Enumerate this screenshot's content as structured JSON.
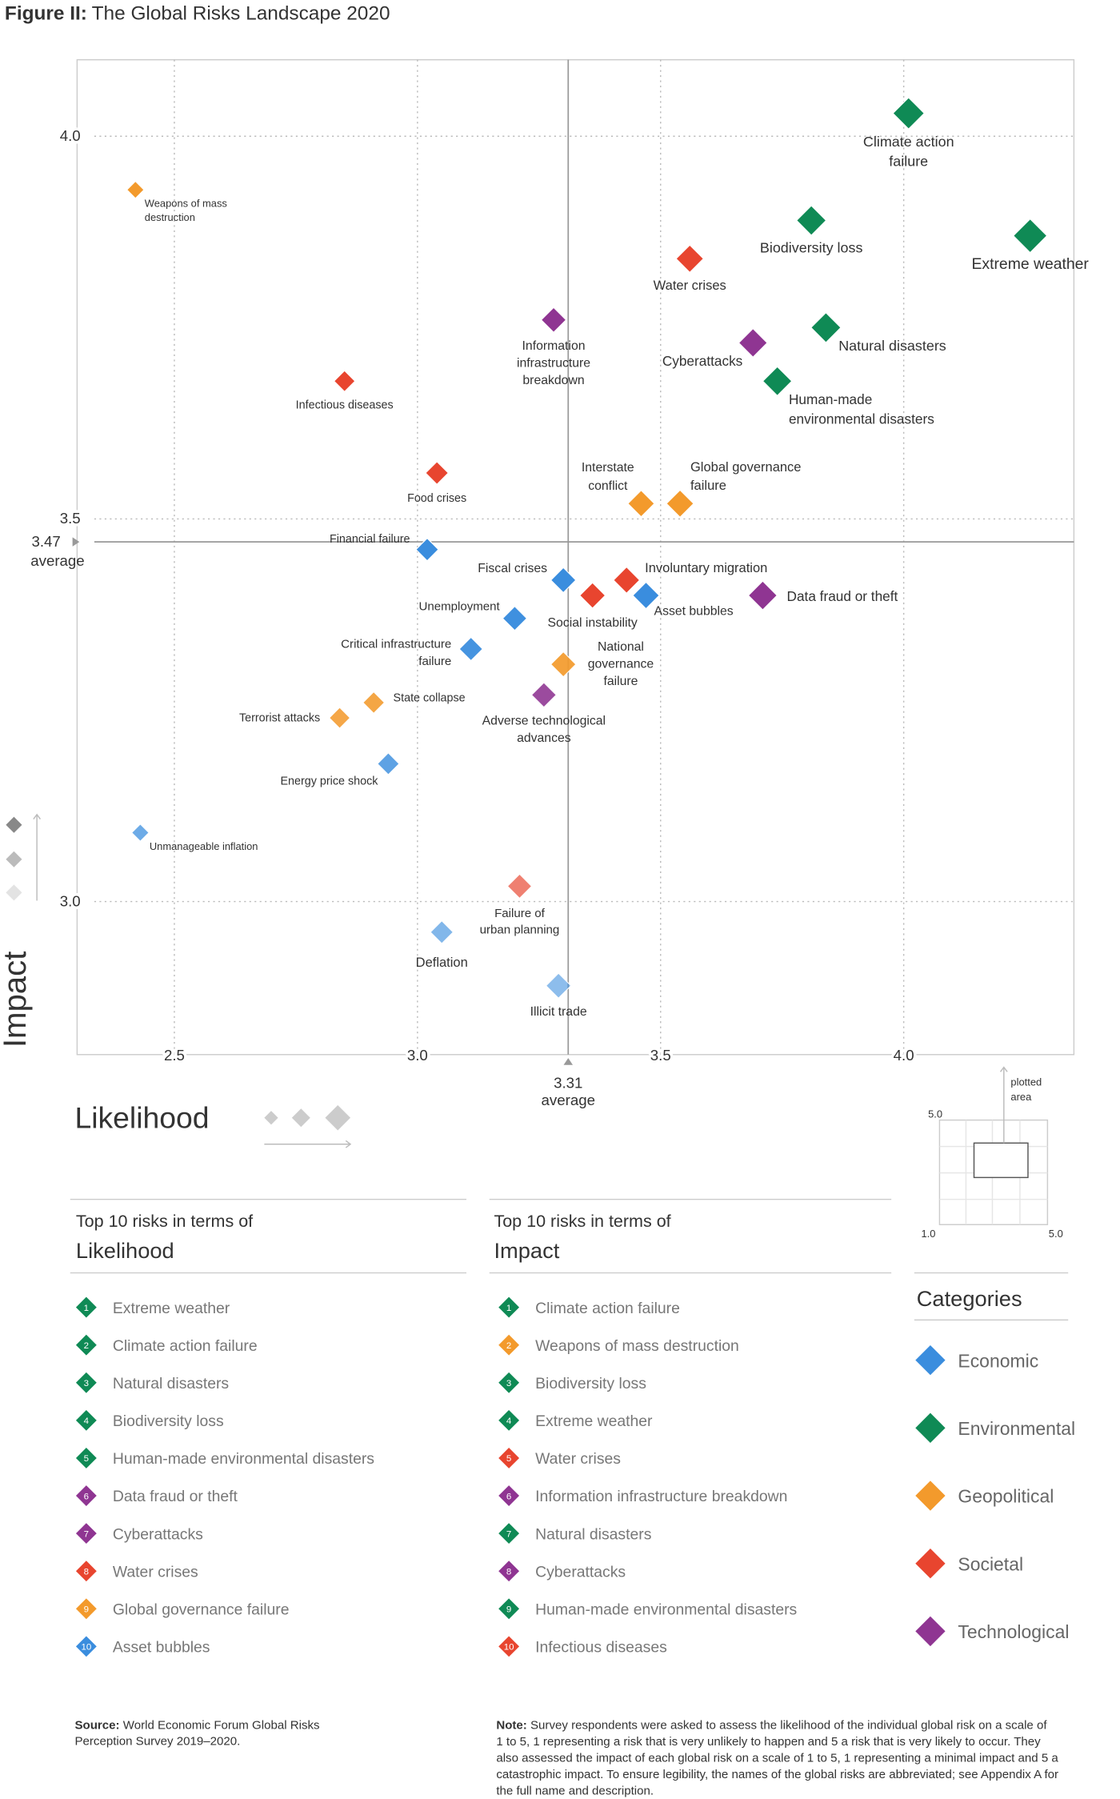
{
  "chart_data": {
    "type": "scatter",
    "figure_label": "Figure II:",
    "title": "The Global Risks Landscape 2020",
    "x_label": "Likelihood",
    "y_label": "Impact",
    "xlim": [
      2.3,
      4.35
    ],
    "ylim": [
      2.8,
      4.1
    ],
    "xticks": [
      2.5,
      {
        "value": 3,
        "label": "3.0"
      },
      3.5,
      {
        "value": 4,
        "label": "4.0"
      }
    ],
    "yticks": [
      {
        "value": 3,
        "label": "3.0"
      },
      3.5,
      {
        "value": 4,
        "label": "4.0"
      }
    ],
    "grid": true,
    "average_likelihood": 3.31,
    "average_impact": 3.47,
    "average_label": "average",
    "points": [
      {
        "label": [
          "Climate action",
          "failure"
        ],
        "x": 4.01,
        "y": 4.03,
        "category": "Environmental"
      },
      {
        "label": [
          "Weapons of mass",
          "destruction"
        ],
        "x": 2.42,
        "y": 3.93,
        "category": "Geopolitical"
      },
      {
        "label": [
          "Biodiversity loss"
        ],
        "x": 3.81,
        "y": 3.89,
        "category": "Environmental"
      },
      {
        "label": [
          "Extreme weather"
        ],
        "x": 4.26,
        "y": 3.87,
        "category": "Environmental"
      },
      {
        "label": [
          "Water crises"
        ],
        "x": 3.56,
        "y": 3.84,
        "category": "Societal"
      },
      {
        "label": [
          "Information",
          "infrastructure",
          "breakdown"
        ],
        "x": 3.28,
        "y": 3.76,
        "category": "Technological"
      },
      {
        "label": [
          "Natural disasters"
        ],
        "x": 3.84,
        "y": 3.75,
        "category": "Environmental"
      },
      {
        "label": [
          "Cyberattacks"
        ],
        "x": 3.69,
        "y": 3.73,
        "category": "Technological"
      },
      {
        "label": [
          "Human-made",
          "environmental disasters"
        ],
        "x": 3.74,
        "y": 3.68,
        "category": "Environmental"
      },
      {
        "label": [
          "Infectious diseases"
        ],
        "x": 2.85,
        "y": 3.68,
        "category": "Societal"
      },
      {
        "label": [
          "Food crises"
        ],
        "x": 3.04,
        "y": 3.56,
        "category": "Societal"
      },
      {
        "label": [
          "Interstate",
          "conflict"
        ],
        "x": 3.46,
        "y": 3.52,
        "category": "Geopolitical"
      },
      {
        "label": [
          "Global governance",
          "failure"
        ],
        "x": 3.54,
        "y": 3.52,
        "category": "Geopolitical"
      },
      {
        "label": [
          "Financial failure"
        ],
        "x": 3.02,
        "y": 3.46,
        "category": "Economic"
      },
      {
        "label": [
          "Fiscal crises"
        ],
        "x": 3.3,
        "y": 3.42,
        "category": "Economic"
      },
      {
        "label": [
          "Involuntary migration"
        ],
        "x": 3.43,
        "y": 3.42,
        "category": "Societal"
      },
      {
        "label": [
          "Social instability"
        ],
        "x": 3.36,
        "y": 3.4,
        "category": "Societal"
      },
      {
        "label": [
          "Asset bubbles"
        ],
        "x": 3.47,
        "y": 3.4,
        "category": "Economic"
      },
      {
        "label": [
          "Data fraud or theft"
        ],
        "x": 3.71,
        "y": 3.4,
        "category": "Technological"
      },
      {
        "label": [
          "Unemployment"
        ],
        "x": 3.2,
        "y": 3.37,
        "category": "Economic"
      },
      {
        "label": [
          "Critical infrastructure",
          "failure"
        ],
        "x": 3.11,
        "y": 3.33,
        "category": "Economic"
      },
      {
        "label": [
          "National",
          "governance",
          "failure"
        ],
        "x": 3.3,
        "y": 3.31,
        "category": "Geopolitical"
      },
      {
        "label": [
          "Adverse technological",
          "advances"
        ],
        "x": 3.26,
        "y": 3.27,
        "category": "Technological"
      },
      {
        "label": [
          "State collapse"
        ],
        "x": 2.91,
        "y": 3.26,
        "category": "Geopolitical"
      },
      {
        "label": [
          "Terrorist attacks"
        ],
        "x": 2.84,
        "y": 3.24,
        "category": "Geopolitical"
      },
      {
        "label": [
          "Energy price shock"
        ],
        "x": 2.94,
        "y": 3.18,
        "category": "Economic"
      },
      {
        "label": [
          "Unmanageable inflation"
        ],
        "x": 2.43,
        "y": 3.09,
        "category": "Economic"
      },
      {
        "label": [
          "Failure of",
          "urban planning"
        ],
        "x": 3.21,
        "y": 3.02,
        "category": "Societal"
      },
      {
        "label": [
          "Deflation"
        ],
        "x": 3.05,
        "y": 2.96,
        "category": "Economic"
      },
      {
        "label": [
          "Illicit trade"
        ],
        "x": 3.29,
        "y": 2.89,
        "category": "Economic"
      }
    ],
    "categories_title": "Categories",
    "categories": [
      {
        "name": "Economic",
        "color": "#3a8dde"
      },
      {
        "name": "Environmental",
        "color": "#0f8a55"
      },
      {
        "name": "Geopolitical",
        "color": "#f39a2c"
      },
      {
        "name": "Societal",
        "color": "#e8452f"
      },
      {
        "name": "Technological",
        "color": "#8f3592"
      }
    ],
    "inset": {
      "top": "5.0",
      "bottom_left": "1.0",
      "bottom_right": "5.0",
      "caption": [
        "plotted",
        "area"
      ]
    }
  },
  "top_likelihood": {
    "intro": "Top 10 risks in terms of",
    "heading": "Likelihood",
    "items": [
      {
        "rank": 1,
        "name": "Extreme weather",
        "category": "Environmental"
      },
      {
        "rank": 2,
        "name": "Climate action failure",
        "category": "Environmental"
      },
      {
        "rank": 3,
        "name": "Natural disasters",
        "category": "Environmental"
      },
      {
        "rank": 4,
        "name": "Biodiversity loss",
        "category": "Environmental"
      },
      {
        "rank": 5,
        "name": "Human-made environmental disasters",
        "category": "Environmental"
      },
      {
        "rank": 6,
        "name": "Data fraud or theft",
        "category": "Technological"
      },
      {
        "rank": 7,
        "name": "Cyberattacks",
        "category": "Technological"
      },
      {
        "rank": 8,
        "name": "Water crises",
        "category": "Societal"
      },
      {
        "rank": 9,
        "name": "Global governance failure",
        "category": "Geopolitical"
      },
      {
        "rank": 10,
        "name": "Asset bubbles",
        "category": "Economic"
      }
    ]
  },
  "top_impact": {
    "intro": "Top 10 risks in terms of",
    "heading": "Impact",
    "items": [
      {
        "rank": 1,
        "name": "Climate action failure",
        "category": "Environmental"
      },
      {
        "rank": 2,
        "name": "Weapons of mass destruction",
        "category": "Geopolitical"
      },
      {
        "rank": 3,
        "name": "Biodiversity loss",
        "category": "Environmental"
      },
      {
        "rank": 4,
        "name": "Extreme weather",
        "category": "Environmental"
      },
      {
        "rank": 5,
        "name": "Water crises",
        "category": "Societal"
      },
      {
        "rank": 6,
        "name": "Information infrastructure breakdown",
        "category": "Technological"
      },
      {
        "rank": 7,
        "name": "Natural disasters",
        "category": "Environmental"
      },
      {
        "rank": 8,
        "name": "Cyberattacks",
        "category": "Technological"
      },
      {
        "rank": 9,
        "name": "Human-made environmental disasters",
        "category": "Environmental"
      },
      {
        "rank": 10,
        "name": "Infectious diseases",
        "category": "Societal"
      }
    ]
  },
  "source": {
    "label": "Source:",
    "lines": [
      " World Economic Forum Global Risks",
      "Perception Survey 2019–2020."
    ]
  },
  "note": {
    "label": "Note:",
    "lines": [
      " Survey respondents were asked to assess the likelihood of the individual global risk on a scale of",
      "1 to 5, 1 representing a risk that is very unlikely to happen and 5 a risk that is very likely to occur. They",
      "also assessed the impact of each global risk on a scale of 1 to 5, 1 representing a minimal impact and 5 a",
      "catastrophic impact. To ensure legibility, the names of the global risks are abbreviated; see Appendix A for",
      "the full name and description."
    ]
  }
}
